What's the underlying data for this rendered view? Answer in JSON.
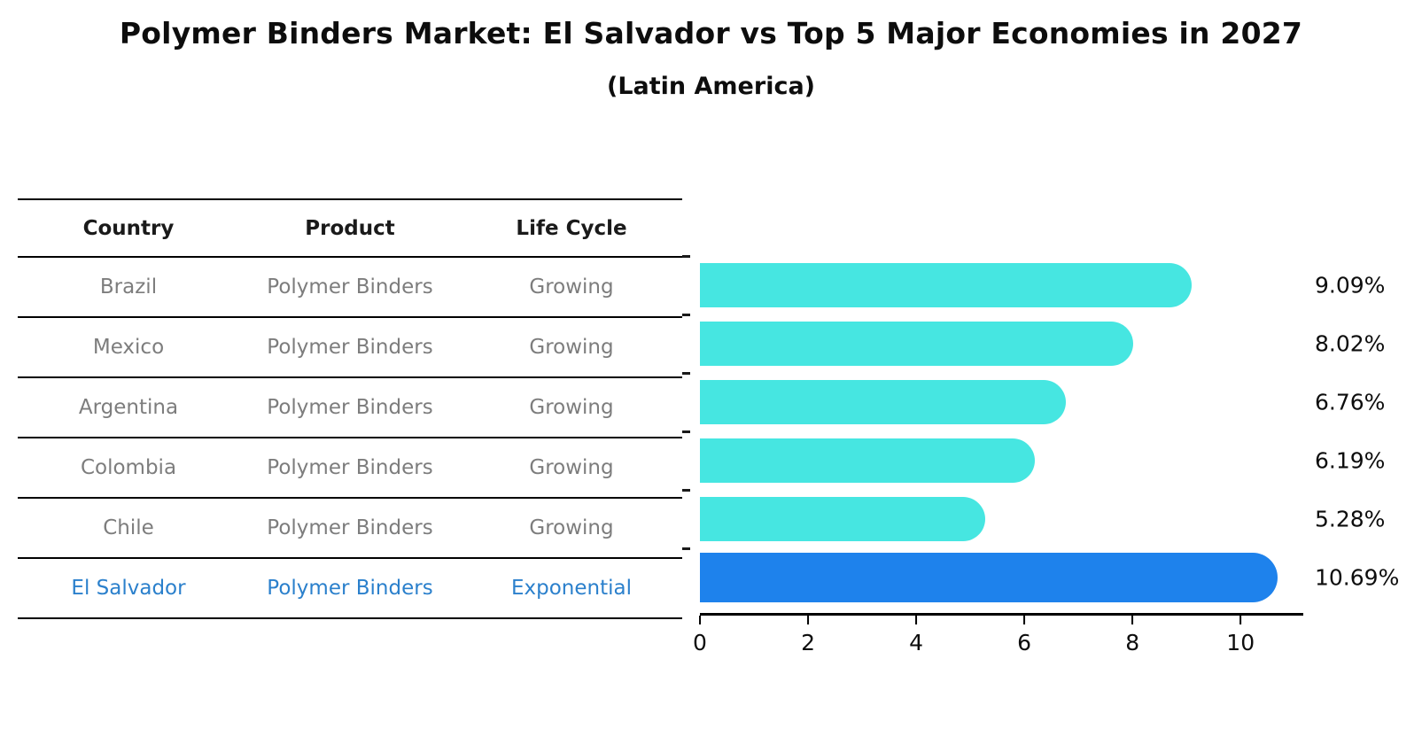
{
  "header": {
    "title": "Polymer Binders Market: El Salvador vs Top 5 Major Economies in 2027",
    "subtitle": "(Latin America)"
  },
  "table": {
    "columns": [
      "Country",
      "Product",
      "Life Cycle"
    ],
    "rows": [
      {
        "country": "Brazil",
        "product": "Polymer Binders",
        "life_cycle": "Growing",
        "highlight": false
      },
      {
        "country": "Mexico",
        "product": "Polymer Binders",
        "life_cycle": "Growing",
        "highlight": false
      },
      {
        "country": "Argentina",
        "product": "Polymer Binders",
        "life_cycle": "Growing",
        "highlight": false
      },
      {
        "country": "Colombia",
        "product": "Polymer Binders",
        "life_cycle": "Growing",
        "highlight": false
      },
      {
        "country": "Chile",
        "product": "Polymer Binders",
        "life_cycle": "Growing",
        "highlight": false
      },
      {
        "country": "El Salvador",
        "product": "Polymer Binders",
        "life_cycle": "Exponential",
        "highlight": true
      }
    ]
  },
  "chart_data": {
    "type": "bar",
    "orientation": "horizontal",
    "title": "Polymer Binders Market: El Salvador vs Top 5 Major Economies in 2027",
    "subtitle": "(Latin America)",
    "categories": [
      "Brazil",
      "Mexico",
      "Argentina",
      "Colombia",
      "Chile",
      "El Salvador"
    ],
    "values": [
      9.09,
      8.02,
      6.76,
      6.19,
      5.28,
      10.69
    ],
    "labels": [
      "9.09%",
      "8.02%",
      "6.76%",
      "6.19%",
      "5.28%",
      "10.69%"
    ],
    "xlabel": "",
    "ylabel": "",
    "xlim": [
      0,
      11.16
    ],
    "xticks": [
      0,
      2,
      4,
      6,
      8,
      10
    ],
    "grid": false,
    "legend": "none",
    "highlight_index": 5
  },
  "colors": {
    "bar_color": "#46E6E1",
    "highlight_bar": "#1E82EC",
    "row_text": "#7d7d7d",
    "highlight_text": "#2b80cc",
    "header_text": "#1a1a1a",
    "axis_color": "#000000"
  }
}
